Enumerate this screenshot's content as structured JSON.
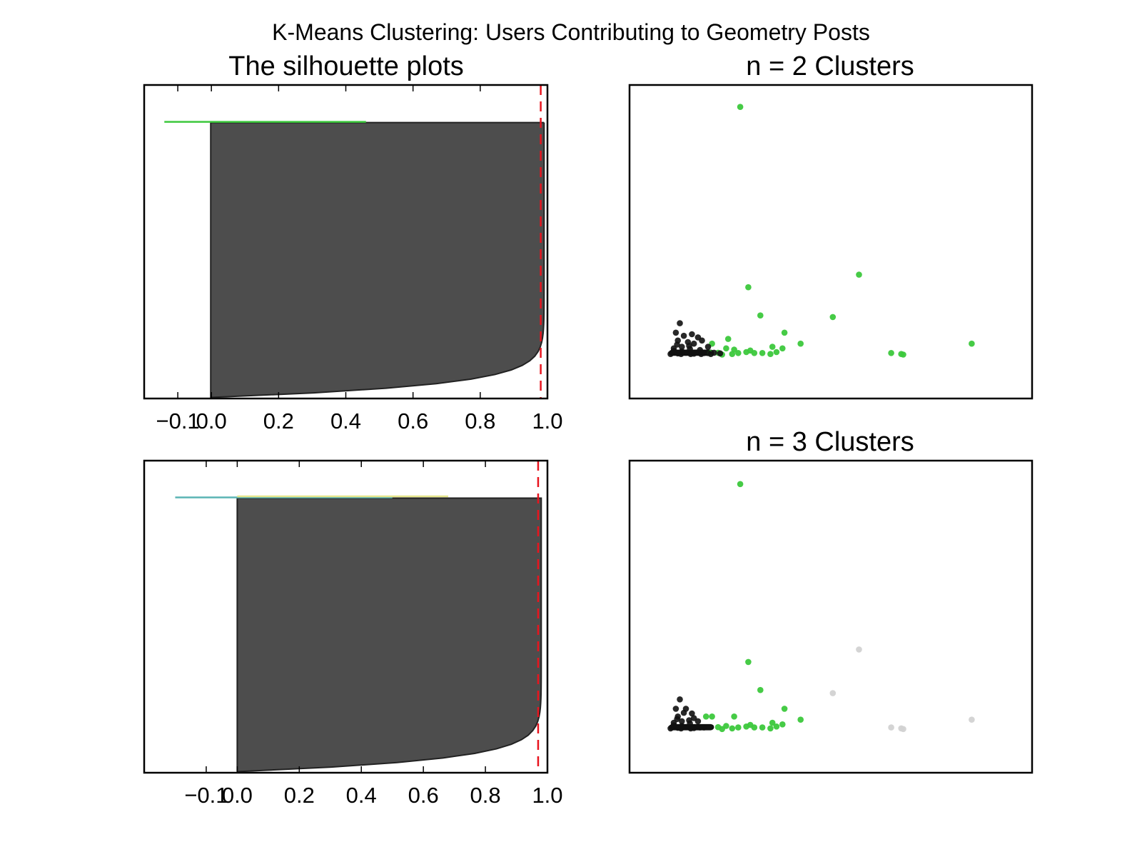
{
  "figure": {
    "suptitle": "K-Means Clustering: Users Contributing to Geometry Posts",
    "colors": {
      "background": "#ffffff",
      "axes_edge": "#000000",
      "silhouette_fill": "#4d4d4d",
      "avg_line": "#e8141e",
      "cluster_green": "#3cc83c",
      "cluster_black": "#111111",
      "cluster_gray": "#d2d2d2",
      "cluster_teal": "#5ab4b4",
      "cluster_yellow": "#e6e68c"
    }
  },
  "chart_data": [
    {
      "type": "area",
      "title": "The silhouette plots",
      "xlim": [
        -0.2,
        1.0
      ],
      "xticks": [
        -0.1,
        0.0,
        0.2,
        0.4,
        0.6,
        0.8,
        1.0
      ],
      "xtick_labels": [
        "−0.1",
        "0.0",
        "0.2",
        "0.4",
        "0.6",
        "0.8",
        "1.0"
      ],
      "avg_silhouette": 0.98,
      "clusters": [
        {
          "name": "0",
          "color": "black",
          "min": -0.002,
          "max": 0.99
        },
        {
          "name": "1",
          "color": "green",
          "min": -0.14,
          "max": 0.46
        }
      ]
    },
    {
      "type": "area",
      "xlim": [
        -0.3,
        1.0
      ],
      "xticks": [
        -0.1,
        0.0,
        0.2,
        0.4,
        0.6,
        0.8,
        1.0
      ],
      "xtick_labels": [
        "−0.1",
        "0.0",
        "0.2",
        "0.4",
        "0.6",
        "0.8",
        "1.0"
      ],
      "avg_silhouette": 0.97,
      "clusters": [
        {
          "name": "0",
          "color": "black",
          "min": 0.0,
          "max": 0.98
        },
        {
          "name": "1",
          "color": "teal",
          "min": -0.2,
          "max": 0.5
        },
        {
          "name": "2",
          "color": "yellow",
          "min": 0.0,
          "max": 0.68
        }
      ]
    },
    {
      "type": "scatter",
      "title": "n = 2 Clusters",
      "xlim": [
        0,
        100
      ],
      "ylim": [
        0,
        100
      ],
      "points": [
        {
          "x": 27.5,
          "y": 93,
          "c": "green"
        },
        {
          "x": 57,
          "y": 39.5,
          "c": "green"
        },
        {
          "x": 29.5,
          "y": 35.5,
          "c": "green"
        },
        {
          "x": 32.5,
          "y": 26.5,
          "c": "green"
        },
        {
          "x": 50.5,
          "y": 26,
          "c": "green"
        },
        {
          "x": 38.5,
          "y": 21,
          "c": "green"
        },
        {
          "x": 42.5,
          "y": 17.5,
          "c": "green"
        },
        {
          "x": 38,
          "y": 16,
          "c": "green"
        },
        {
          "x": 35.5,
          "y": 16.5,
          "c": "green"
        },
        {
          "x": 24.5,
          "y": 19,
          "c": "green"
        },
        {
          "x": 24,
          "y": 16,
          "c": "green"
        },
        {
          "x": 20.5,
          "y": 17.5,
          "c": "green"
        },
        {
          "x": 85,
          "y": 17.5,
          "c": "green"
        },
        {
          "x": 65,
          "y": 14.5,
          "c": "green"
        },
        {
          "x": 67.5,
          "y": 14.2,
          "c": "green"
        },
        {
          "x": 68,
          "y": 14,
          "c": "green"
        },
        {
          "x": 27,
          "y": 14.5,
          "c": "green"
        },
        {
          "x": 29,
          "y": 14.8,
          "c": "green"
        },
        {
          "x": 31,
          "y": 14.5,
          "c": "green"
        },
        {
          "x": 33,
          "y": 14.5,
          "c": "green"
        },
        {
          "x": 35,
          "y": 14.2,
          "c": "green"
        },
        {
          "x": 36.5,
          "y": 14.8,
          "c": "green"
        },
        {
          "x": 25.5,
          "y": 14.2,
          "c": "green"
        },
        {
          "x": 22,
          "y": 14.6,
          "c": "green"
        },
        {
          "x": 23,
          "y": 14,
          "c": "green"
        },
        {
          "x": 26,
          "y": 15.6,
          "c": "green"
        },
        {
          "x": 30,
          "y": 15.3,
          "c": "green"
        },
        {
          "x": 20,
          "y": 14.5,
          "c": "green"
        },
        {
          "x": 12.5,
          "y": 24,
          "c": "black"
        },
        {
          "x": 11.5,
          "y": 21,
          "c": "black"
        },
        {
          "x": 13.5,
          "y": 20,
          "c": "black"
        },
        {
          "x": 15.5,
          "y": 20.5,
          "c": "black"
        },
        {
          "x": 18,
          "y": 18.5,
          "c": "black"
        },
        {
          "x": 17,
          "y": 19.5,
          "c": "black"
        },
        {
          "x": 14.5,
          "y": 18,
          "c": "black"
        },
        {
          "x": 12,
          "y": 18.5,
          "c": "black"
        },
        {
          "x": 16,
          "y": 17.5,
          "c": "black"
        },
        {
          "x": 19.5,
          "y": 16.5,
          "c": "black"
        },
        {
          "x": 11,
          "y": 16,
          "c": "black"
        },
        {
          "x": 13,
          "y": 16.5,
          "c": "black"
        },
        {
          "x": 15,
          "y": 15.8,
          "c": "black"
        },
        {
          "x": 17.5,
          "y": 15.5,
          "c": "black"
        },
        {
          "x": 10.5,
          "y": 14.5,
          "c": "black"
        },
        {
          "x": 12,
          "y": 14.4,
          "c": "black"
        },
        {
          "x": 14,
          "y": 14.6,
          "c": "black"
        },
        {
          "x": 16,
          "y": 14.3,
          "c": "black"
        },
        {
          "x": 18.5,
          "y": 14.5,
          "c": "black"
        },
        {
          "x": 11,
          "y": 15.2,
          "c": "black"
        },
        {
          "x": 13,
          "y": 15,
          "c": "black"
        },
        {
          "x": 19.5,
          "y": 14.5,
          "c": "black"
        },
        {
          "x": 21,
          "y": 14.6,
          "c": "black"
        },
        {
          "x": 22.5,
          "y": 14.4,
          "c": "black"
        },
        {
          "x": 11.8,
          "y": 17.2,
          "c": "black"
        },
        {
          "x": 14.8,
          "y": 16.8,
          "c": "black"
        },
        {
          "x": 10.2,
          "y": 14.2,
          "c": "black"
        },
        {
          "x": 12.8,
          "y": 14.2,
          "c": "black"
        },
        {
          "x": 15.2,
          "y": 14.2,
          "c": "black"
        },
        {
          "x": 17.8,
          "y": 14.2,
          "c": "black"
        },
        {
          "x": 20.2,
          "y": 14.2,
          "c": "black"
        }
      ]
    },
    {
      "type": "scatter",
      "title": "n = 3 Clusters",
      "xlim": [
        0,
        100
      ],
      "ylim": [
        0,
        100
      ],
      "points": [
        {
          "x": 27.5,
          "y": 92.5,
          "c": "green"
        },
        {
          "x": 29.5,
          "y": 35.5,
          "c": "green"
        },
        {
          "x": 32.5,
          "y": 26.5,
          "c": "green"
        },
        {
          "x": 38.5,
          "y": 20.5,
          "c": "green"
        },
        {
          "x": 42.5,
          "y": 17,
          "c": "green"
        },
        {
          "x": 38,
          "y": 15.5,
          "c": "green"
        },
        {
          "x": 35.5,
          "y": 16,
          "c": "green"
        },
        {
          "x": 26,
          "y": 18,
          "c": "green"
        },
        {
          "x": 20.5,
          "y": 18,
          "c": "green"
        },
        {
          "x": 19,
          "y": 18,
          "c": "green"
        },
        {
          "x": 24,
          "y": 15,
          "c": "green"
        },
        {
          "x": 27,
          "y": 14.5,
          "c": "green"
        },
        {
          "x": 29,
          "y": 14.8,
          "c": "green"
        },
        {
          "x": 31,
          "y": 14.5,
          "c": "green"
        },
        {
          "x": 33,
          "y": 14.5,
          "c": "green"
        },
        {
          "x": 35,
          "y": 14.2,
          "c": "green"
        },
        {
          "x": 36.5,
          "y": 14.8,
          "c": "green"
        },
        {
          "x": 25.5,
          "y": 14.2,
          "c": "green"
        },
        {
          "x": 22,
          "y": 14.6,
          "c": "green"
        },
        {
          "x": 23,
          "y": 14,
          "c": "green"
        },
        {
          "x": 30,
          "y": 15.3,
          "c": "green"
        },
        {
          "x": 57,
          "y": 39.5,
          "c": "gray"
        },
        {
          "x": 50.5,
          "y": 25.5,
          "c": "gray"
        },
        {
          "x": 85,
          "y": 17,
          "c": "gray"
        },
        {
          "x": 65,
          "y": 14.5,
          "c": "gray"
        },
        {
          "x": 67.5,
          "y": 14.2,
          "c": "gray"
        },
        {
          "x": 68,
          "y": 14,
          "c": "gray"
        },
        {
          "x": 12.5,
          "y": 23.5,
          "c": "black"
        },
        {
          "x": 11.5,
          "y": 20.5,
          "c": "black"
        },
        {
          "x": 14,
          "y": 20.5,
          "c": "black"
        },
        {
          "x": 15.5,
          "y": 19,
          "c": "black"
        },
        {
          "x": 13.5,
          "y": 19.2,
          "c": "black"
        },
        {
          "x": 12,
          "y": 18,
          "c": "black"
        },
        {
          "x": 16,
          "y": 17.5,
          "c": "black"
        },
        {
          "x": 17,
          "y": 16.5,
          "c": "black"
        },
        {
          "x": 11,
          "y": 16,
          "c": "black"
        },
        {
          "x": 13,
          "y": 16.5,
          "c": "black"
        },
        {
          "x": 15,
          "y": 15.8,
          "c": "black"
        },
        {
          "x": 10.5,
          "y": 14.5,
          "c": "black"
        },
        {
          "x": 12,
          "y": 14.4,
          "c": "black"
        },
        {
          "x": 14,
          "y": 14.6,
          "c": "black"
        },
        {
          "x": 16,
          "y": 14.3,
          "c": "black"
        },
        {
          "x": 17.5,
          "y": 14.5,
          "c": "black"
        },
        {
          "x": 11,
          "y": 15.2,
          "c": "black"
        },
        {
          "x": 13,
          "y": 15,
          "c": "black"
        },
        {
          "x": 18.5,
          "y": 14.5,
          "c": "black"
        },
        {
          "x": 10.2,
          "y": 14.2,
          "c": "black"
        },
        {
          "x": 12.8,
          "y": 14.2,
          "c": "black"
        },
        {
          "x": 15.2,
          "y": 14.2,
          "c": "black"
        },
        {
          "x": 11.8,
          "y": 17.2,
          "c": "black"
        },
        {
          "x": 14.8,
          "y": 16.8,
          "c": "black"
        }
      ]
    }
  ]
}
